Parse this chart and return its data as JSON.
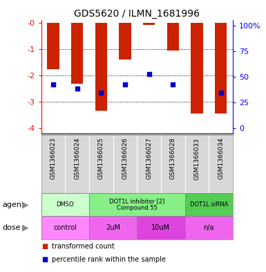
{
  "title": "GDS5620 / ILMN_1681996",
  "samples": [
    "GSM1366023",
    "GSM1366024",
    "GSM1366025",
    "GSM1366026",
    "GSM1366027",
    "GSM1366028",
    "GSM1366033",
    "GSM1366034"
  ],
  "bar_values": [
    -1.75,
    -2.3,
    -3.35,
    -1.4,
    -0.08,
    -1.05,
    -3.45,
    -3.45
  ],
  "dot_values": [
    -2.35,
    -2.5,
    -2.65,
    -2.35,
    -1.95,
    -2.35,
    null,
    -2.65
  ],
  "bar_color": "#cc2200",
  "dot_color": "#0000cc",
  "ylim_left": [
    -4.2,
    0.1
  ],
  "ylim_right": [
    -5.25,
    105
  ],
  "yticks_left": [
    0,
    -1,
    -2,
    -3,
    -4
  ],
  "ytick_labels_left": [
    "-0",
    "-1",
    "-2",
    "-3",
    "-4"
  ],
  "yticks_right": [
    0,
    25,
    50,
    75,
    100
  ],
  "ytick_labels_right": [
    "0",
    "25",
    "50",
    "75",
    "100%"
  ],
  "agent_groups": [
    {
      "label": "DMSO",
      "start": 0,
      "end": 2,
      "color": "#ccffcc"
    },
    {
      "label": "DOT1L inhibitor [2]\nCompound 55",
      "start": 2,
      "end": 6,
      "color": "#88ee88"
    },
    {
      "label": "DOT1L siRNA",
      "start": 6,
      "end": 8,
      "color": "#55cc55"
    }
  ],
  "dose_groups": [
    {
      "label": "control",
      "start": 0,
      "end": 2,
      "color": "#ff88ff"
    },
    {
      "label": "2uM",
      "start": 2,
      "end": 4,
      "color": "#ee66ee"
    },
    {
      "label": "10uM",
      "start": 4,
      "end": 6,
      "color": "#dd44dd"
    },
    {
      "label": "n/a",
      "start": 6,
      "end": 8,
      "color": "#ee66ee"
    }
  ],
  "legend_items": [
    {
      "color": "#cc2200",
      "label": "transformed count"
    },
    {
      "color": "#0000cc",
      "label": "percentile rank within the sample"
    }
  ],
  "agent_label": "agent",
  "dose_label": "dose",
  "bar_width": 0.5,
  "dot_size": 5
}
